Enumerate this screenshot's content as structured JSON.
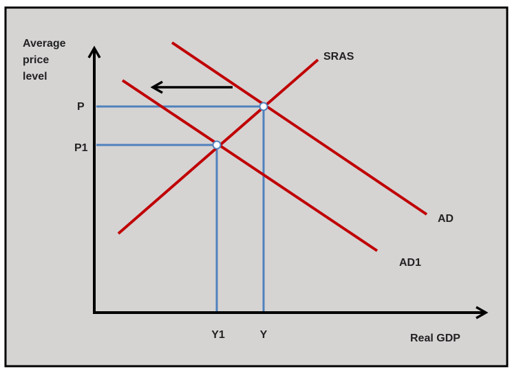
{
  "y_axis_label": [
    "Average",
    "price",
    "level"
  ],
  "x_axis_label": "Real GDP",
  "price_levels": [
    "P",
    "P1"
  ],
  "outputs": [
    "Y1",
    "Y"
  ],
  "curves": {
    "sras": "SRAS",
    "ad": "AD",
    "ad1": "AD1"
  }
}
